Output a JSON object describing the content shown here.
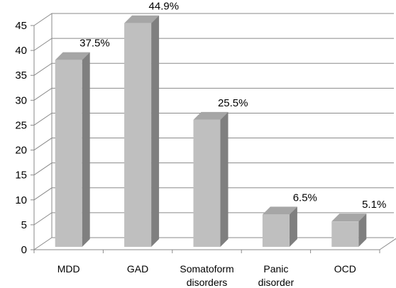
{
  "chart_data": {
    "type": "bar",
    "title": "",
    "xlabel": "",
    "ylabel": "",
    "categories": [
      [
        "MDD"
      ],
      [
        "GAD"
      ],
      [
        "Somatoform",
        "disorders"
      ],
      [
        "Panic",
        "disorder"
      ],
      [
        "OCD"
      ]
    ],
    "values": [
      37.5,
      44.9,
      25.5,
      6.5,
      5.1
    ],
    "data_labels": [
      "37.5%",
      "44.9%",
      "25.5%",
      "6.5%",
      "5.1%"
    ],
    "ylim": [
      0,
      45
    ],
    "yticks": [
      0,
      5,
      10,
      15,
      20,
      25,
      30,
      35,
      40,
      45
    ],
    "grid": true,
    "style": "3d-column",
    "colors": {
      "front": "#bfbfbf",
      "side": "#7f7f7f",
      "top": "#a6a6a6",
      "grid": "#8a8a8a"
    }
  }
}
